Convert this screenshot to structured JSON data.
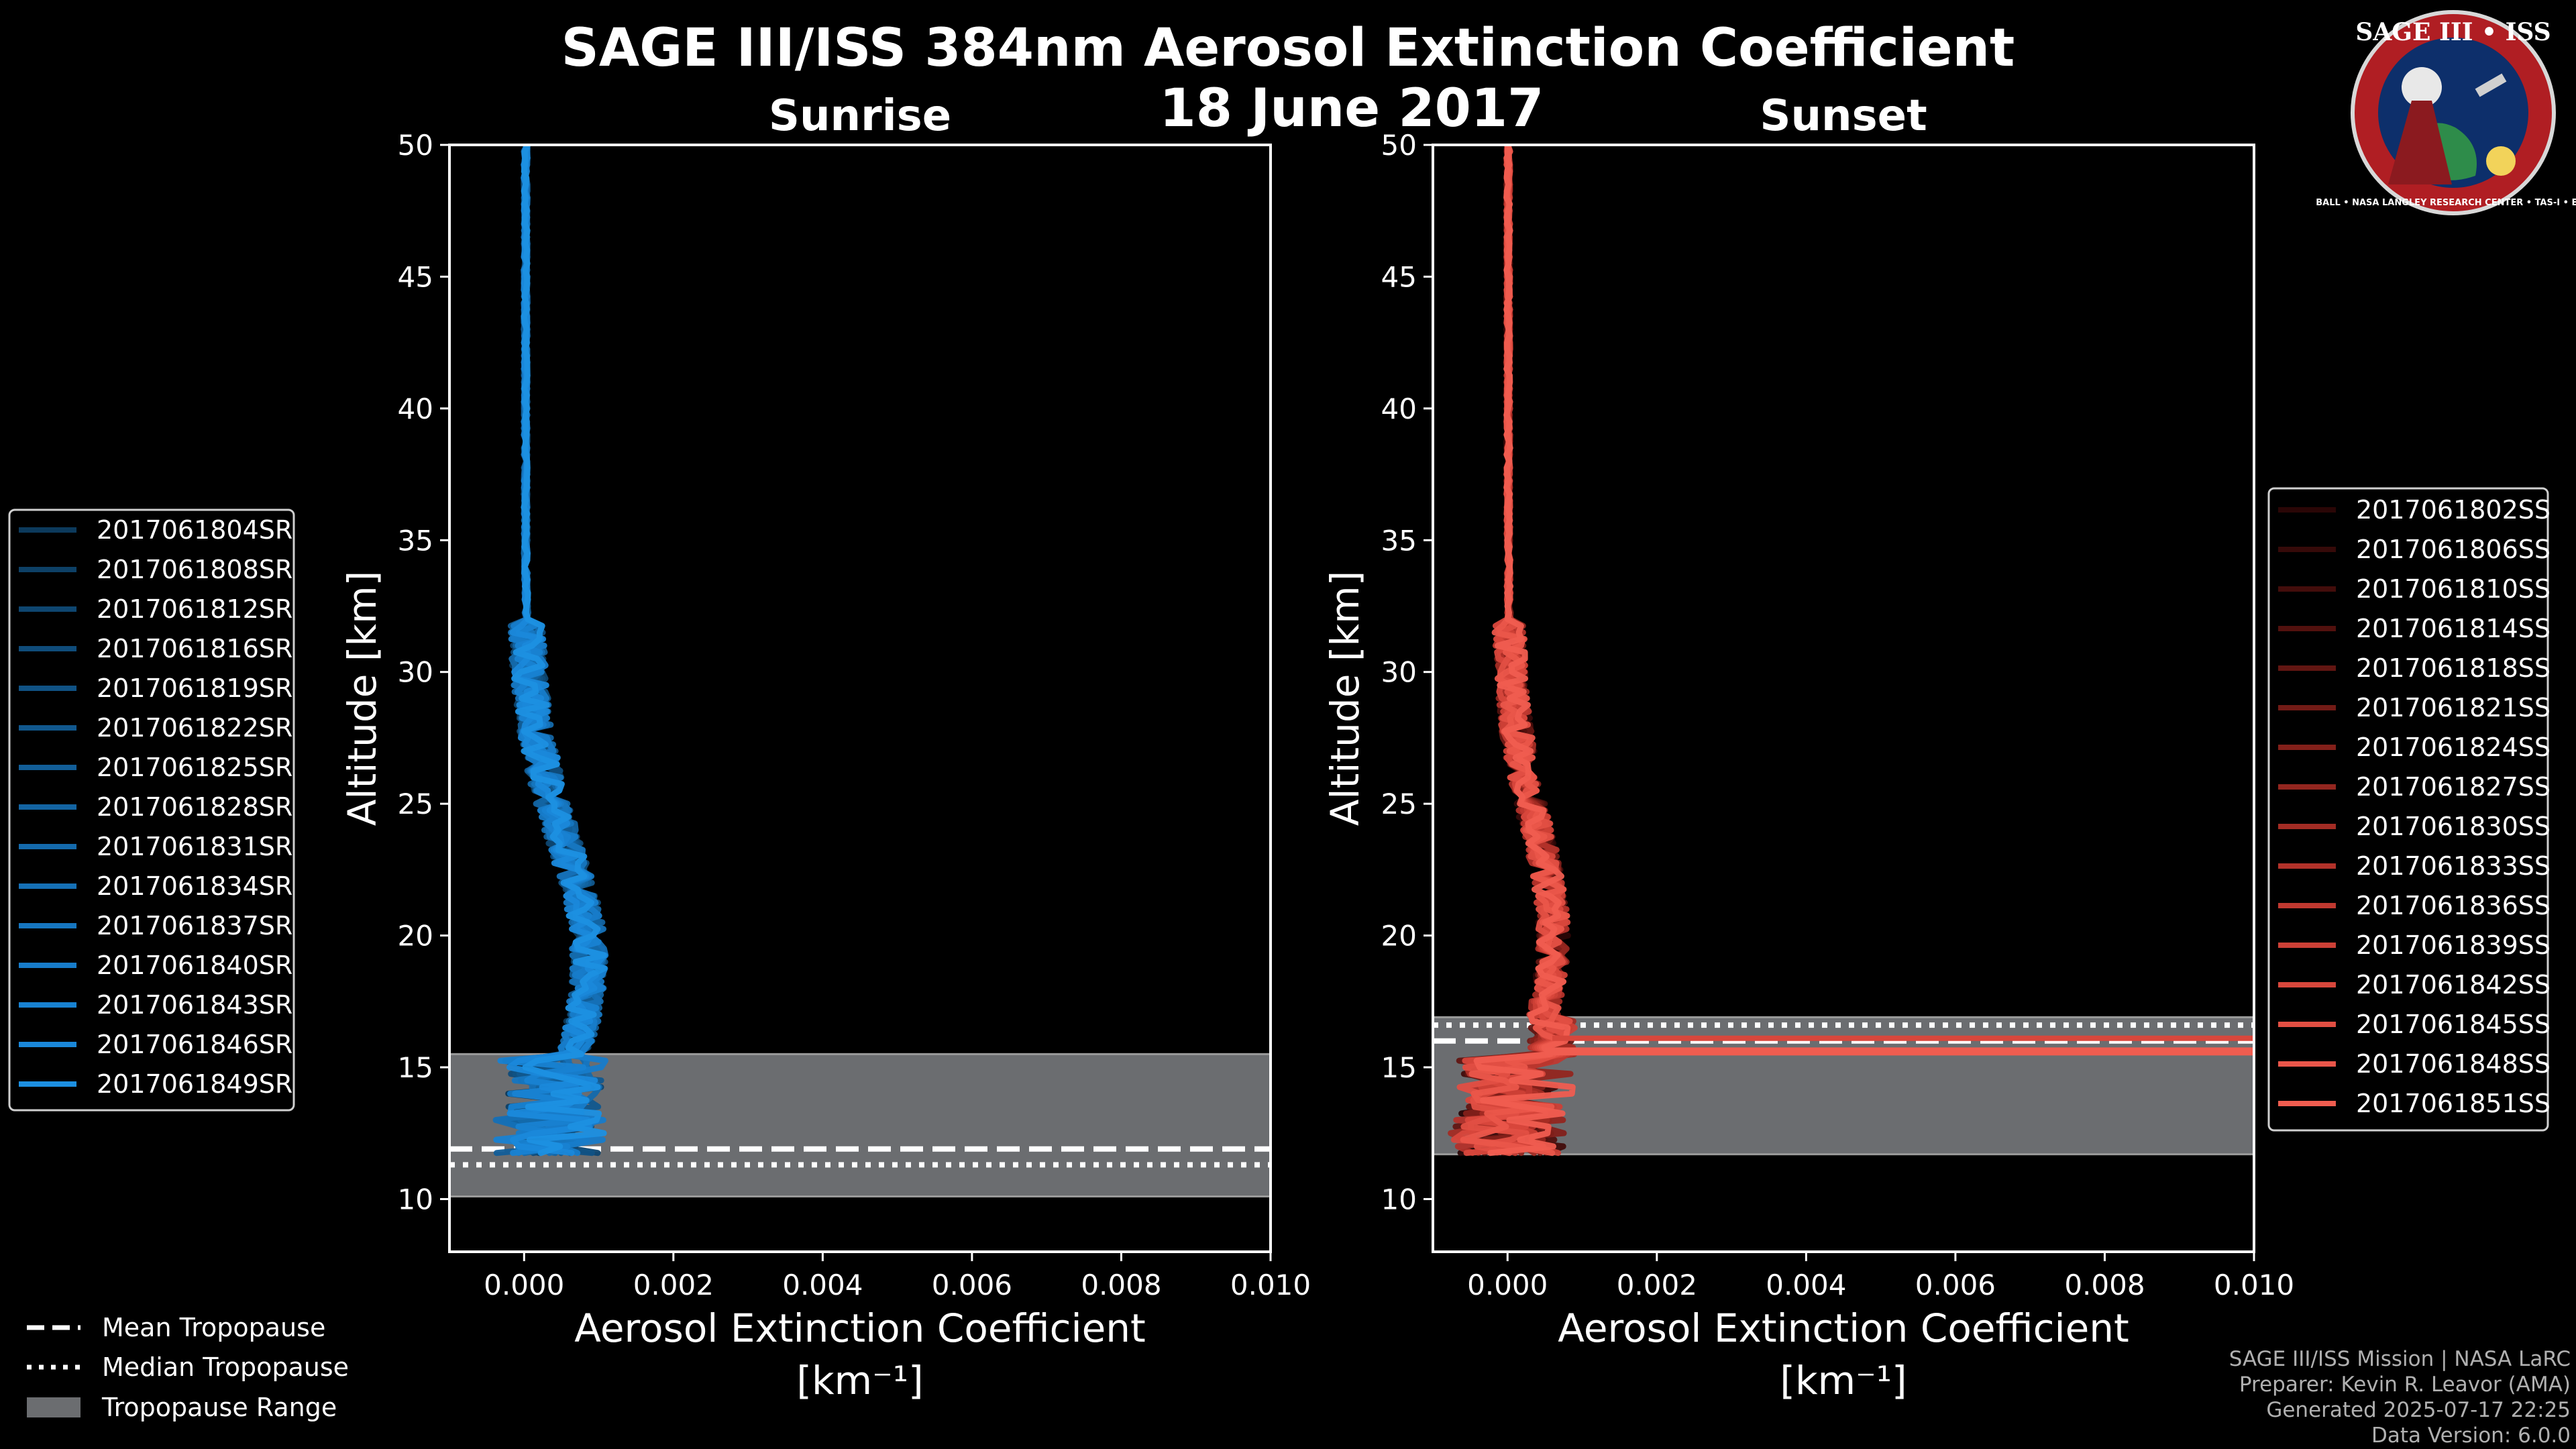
{
  "chart_data": [
    {
      "type": "line",
      "title": "Sunrise",
      "xlabel": "Aerosol Extinction Coefficient",
      "xlabel_units": "[km⁻¹]",
      "ylabel": "Altitude [km]",
      "xlim": [
        -0.001,
        0.01
      ],
      "ylim": [
        8,
        50
      ],
      "xticks": [
        "0.000",
        "0.002",
        "0.004",
        "0.006",
        "0.008",
        "0.010"
      ],
      "xtick_values": [
        0,
        0.002,
        0.004,
        0.006,
        0.008,
        0.01
      ],
      "yticks": [
        "10",
        "15",
        "20",
        "25",
        "30",
        "35",
        "40",
        "45",
        "50"
      ],
      "ytick_values": [
        10,
        15,
        20,
        25,
        30,
        35,
        40,
        45,
        50
      ],
      "tropopause": {
        "mean": 11.9,
        "median": 11.3,
        "range": [
          10.1,
          15.5
        ]
      },
      "legend_position": "left",
      "series": [
        {
          "name": "2017061804SR",
          "color": "#0c3a5c"
        },
        {
          "name": "2017061808SR",
          "color": "#0d4066"
        },
        {
          "name": "2017061812SR",
          "color": "#0e4670"
        },
        {
          "name": "2017061816SR",
          "color": "#0f4c7a"
        },
        {
          "name": "2017061819SR",
          "color": "#105284"
        },
        {
          "name": "2017061822SR",
          "color": "#11588e"
        },
        {
          "name": "2017061825SR",
          "color": "#125e98"
        },
        {
          "name": "2017061828SR",
          "color": "#1364a2"
        },
        {
          "name": "2017061831SR",
          "color": "#146aac"
        },
        {
          "name": "2017061834SR",
          "color": "#1570b6"
        },
        {
          "name": "2017061837SR",
          "color": "#1676c0"
        },
        {
          "name": "2017061840SR",
          "color": "#177cca"
        },
        {
          "name": "2017061843SR",
          "color": "#1882d2"
        },
        {
          "name": "2017061846SR",
          "color": "#1a88da"
        },
        {
          "name": "2017061849SR",
          "color": "#1c90e2"
        }
      ]
    },
    {
      "type": "line",
      "title": "Sunset",
      "xlabel": "Aerosol Extinction Coefficient",
      "xlabel_units": "[km⁻¹]",
      "ylabel": "Altitude [km]",
      "xlim": [
        -0.001,
        0.01
      ],
      "ylim": [
        8,
        50
      ],
      "xticks": [
        "0.000",
        "0.002",
        "0.004",
        "0.006",
        "0.008",
        "0.010"
      ],
      "xtick_values": [
        0,
        0.002,
        0.004,
        0.006,
        0.008,
        0.01
      ],
      "yticks": [
        "10",
        "15",
        "20",
        "25",
        "30",
        "35",
        "40",
        "45",
        "50"
      ],
      "ytick_values": [
        10,
        15,
        20,
        25,
        30,
        35,
        40,
        45,
        50
      ],
      "tropopause": {
        "mean": 16.0,
        "median": 16.6,
        "range": [
          11.7,
          16.9
        ]
      },
      "legend_position": "right",
      "series": [
        {
          "name": "2017061802SS",
          "color": "#2a0606"
        },
        {
          "name": "2017061806SS",
          "color": "#360a09"
        },
        {
          "name": "2017061810SS",
          "color": "#430d0b"
        },
        {
          "name": "2017061814SS",
          "color": "#52110e"
        },
        {
          "name": "2017061818SS",
          "color": "#621612"
        },
        {
          "name": "2017061821SS",
          "color": "#721b16"
        },
        {
          "name": "2017061824SS",
          "color": "#83201a"
        },
        {
          "name": "2017061827SS",
          "color": "#93261f"
        },
        {
          "name": "2017061830SS",
          "color": "#a32c24"
        },
        {
          "name": "2017061833SS",
          "color": "#b2322a"
        },
        {
          "name": "2017061836SS",
          "color": "#c03930"
        },
        {
          "name": "2017061839SS",
          "color": "#cd4036"
        },
        {
          "name": "2017061842SS",
          "color": "#d8473c"
        },
        {
          "name": "2017061845SS",
          "color": "#e24f43"
        },
        {
          "name": "2017061848SS",
          "color": "#ea564a"
        },
        {
          "name": "2017061851SS",
          "color": "#f05d50"
        }
      ]
    }
  ],
  "header": {
    "title_line1": "SAGE III/ISS 384nm Aerosol Extinction Coefficient",
    "title_line2": "18 June 2017"
  },
  "legend_tropopause": {
    "mean": "Mean Tropopause",
    "median": "Median Tropopause",
    "range": "Tropopause Range"
  },
  "credits": {
    "line1": "SAGE III/ISS Mission | NASA LaRC",
    "line2": "Preparer: Kevin R. Leavor (AMA)",
    "line3": "Generated 2025-07-17 22:25",
    "line4": "Data Version: 6.0.0"
  },
  "logo": {
    "title": "SAGE III • ISS",
    "ring_text": "BALL • NASA LANGLEY RESEARCH CENTER • TAS-I • ESA"
  },
  "colors": {
    "background": "#000000",
    "tropopause_fill": "#6b6d70",
    "sunrise": "#1c90e2",
    "sunset": "#f05d50"
  }
}
